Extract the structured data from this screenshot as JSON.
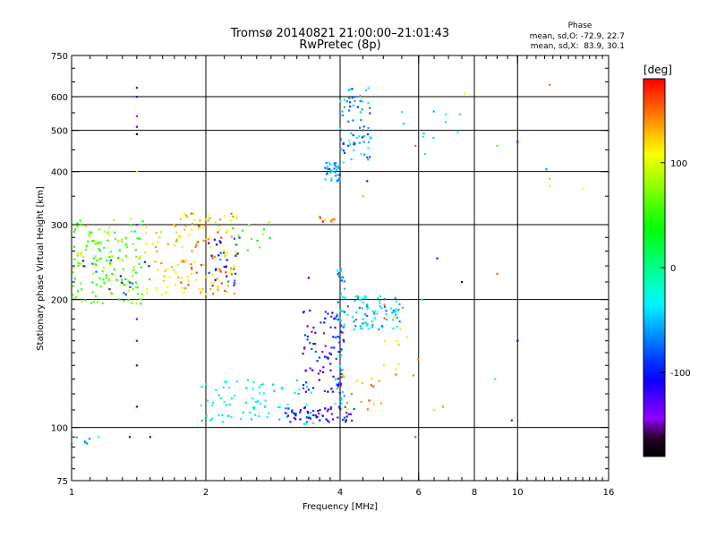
{
  "chart_data": {
    "type": "scatter",
    "title": "Tromsø 20140821 21:00:00–21:01:43",
    "subtitle": "RwPretec (8p)",
    "xlabel": "Frequency [MHz]",
    "ylabel": "Stationary phase Virtual Height [km]",
    "xscale": "log",
    "yscale": "log",
    "xlim": [
      1,
      16
    ],
    "ylim": [
      75,
      750
    ],
    "xticks": [
      1,
      2,
      4,
      6,
      8,
      10,
      16
    ],
    "yticks": [
      75,
      100,
      200,
      300,
      400,
      500,
      600,
      750
    ],
    "x_gridlines": [
      2,
      4,
      6,
      8,
      10
    ],
    "y_gridlines": [
      100,
      200,
      300,
      400,
      500,
      600
    ],
    "grid": true,
    "phase_note": {
      "title": "Phase",
      "line_o": "mean, sd,O: -72.9, 22.7",
      "line_x": "mean, sd,X:  83.9, 30.1"
    },
    "colorbar": {
      "label": "[deg]",
      "range": [
        -180,
        180
      ],
      "ticks": [
        100,
        0,
        -100
      ]
    },
    "clusters": [
      {
        "x_range": [
          1.0,
          1.45
        ],
        "y_range": [
          195,
          310
        ],
        "phase": 60,
        "count": 150
      },
      {
        "x_range": [
          1.45,
          1.75
        ],
        "y_range": [
          200,
          300
        ],
        "phase": 110,
        "count": 40
      },
      {
        "x_range": [
          1.75,
          2.35
        ],
        "y_range": [
          205,
          320
        ],
        "phase": 130,
        "count": 120
      },
      {
        "x_range": [
          2.0,
          2.4
        ],
        "y_range": [
          215,
          280
        ],
        "phase": -90,
        "count": 30
      },
      {
        "x_range": [
          1.0,
          1.5
        ],
        "y_range": [
          205,
          250
        ],
        "phase": -100,
        "count": 15
      },
      {
        "x_range": [
          2.3,
          2.8
        ],
        "y_range": [
          260,
          310
        ],
        "phase": 60,
        "count": 12
      },
      {
        "x_range": [
          1.95,
          3.5
        ],
        "y_range": [
          101,
          130
        ],
        "phase": -20,
        "count": 80
      },
      {
        "x_range": [
          3.0,
          4.3
        ],
        "y_range": [
          103,
          112
        ],
        "phase": -110,
        "count": 60
      },
      {
        "x_range": [
          3.3,
          4.1
        ],
        "y_range": [
          120,
          190
        ],
        "phase": -110,
        "count": 80
      },
      {
        "x_range": [
          3.9,
          4.1
        ],
        "y_range": [
          110,
          240
        ],
        "phase": -60,
        "count": 50
      },
      {
        "x_range": [
          4.0,
          5.5
        ],
        "y_range": [
          170,
          205
        ],
        "phase": -40,
        "count": 80
      },
      {
        "x_range": [
          4.0,
          5.0
        ],
        "y_range": [
          110,
          135
        ],
        "phase": 140,
        "count": 20
      },
      {
        "x_range": [
          5.0,
          6.0
        ],
        "y_range": [
          130,
          200
        ],
        "phase": 120,
        "count": 15
      },
      {
        "x_range": [
          3.7,
          4.0
        ],
        "y_range": [
          378,
          420
        ],
        "phase": -60,
        "count": 35
      },
      {
        "x_range": [
          4.0,
          4.7
        ],
        "y_range": [
          420,
          630
        ],
        "phase": -60,
        "count": 70
      },
      {
        "x_range": [
          3.55,
          3.9
        ],
        "y_range": [
          305,
          315
        ],
        "phase": 150,
        "count": 10
      },
      {
        "x_range": [
          1.0,
          1.1
        ],
        "y_range": [
          91,
          95
        ],
        "phase": -40,
        "count": 6
      },
      {
        "x_range": [
          5.5,
          7.5
        ],
        "y_range": [
          480,
          560
        ],
        "phase": -40,
        "count": 10
      }
    ],
    "points": [
      {
        "x": 1.4,
        "y": 630,
        "phase": -120
      },
      {
        "x": 1.4,
        "y": 600,
        "phase": -110
      },
      {
        "x": 1.4,
        "y": 540,
        "phase": -150
      },
      {
        "x": 1.4,
        "y": 510,
        "phase": -130
      },
      {
        "x": 1.4,
        "y": 490,
        "phase": -160
      },
      {
        "x": 1.4,
        "y": 400,
        "phase": 100
      },
      {
        "x": 1.4,
        "y": 300,
        "phase": -140
      },
      {
        "x": 1.4,
        "y": 180,
        "phase": -140
      },
      {
        "x": 1.4,
        "y": 160,
        "phase": -130
      },
      {
        "x": 1.4,
        "y": 140,
        "phase": -120
      },
      {
        "x": 1.4,
        "y": 112,
        "phase": -120
      },
      {
        "x": 1.35,
        "y": 95,
        "phase": -100
      },
      {
        "x": 1.5,
        "y": 95,
        "phase": -100
      },
      {
        "x": 1.15,
        "y": 95,
        "phase": -30
      },
      {
        "x": 7.6,
        "y": 610,
        "phase": 100
      },
      {
        "x": 11.8,
        "y": 640,
        "phase": 150
      },
      {
        "x": 10.0,
        "y": 470,
        "phase": -120
      },
      {
        "x": 9.0,
        "y": 460,
        "phase": 60
      },
      {
        "x": 11.6,
        "y": 405,
        "phase": -60
      },
      {
        "x": 11.8,
        "y": 385,
        "phase": 130
      },
      {
        "x": 11.8,
        "y": 370,
        "phase": 100
      },
      {
        "x": 14.0,
        "y": 365,
        "phase": 110
      },
      {
        "x": 7.5,
        "y": 220,
        "phase": -160
      },
      {
        "x": 9.0,
        "y": 230,
        "phase": 150
      },
      {
        "x": 10.0,
        "y": 160,
        "phase": -110
      },
      {
        "x": 8.9,
        "y": 130,
        "phase": -20
      },
      {
        "x": 6.5,
        "y": 110,
        "phase": 120
      },
      {
        "x": 6.8,
        "y": 112,
        "phase": 140
      },
      {
        "x": 9.7,
        "y": 104,
        "phase": -130
      },
      {
        "x": 5.9,
        "y": 95,
        "phase": 160
      },
      {
        "x": 6.2,
        "y": 440,
        "phase": -40
      },
      {
        "x": 5.9,
        "y": 460,
        "phase": 150
      },
      {
        "x": 4.5,
        "y": 350,
        "phase": 130
      },
      {
        "x": 4.6,
        "y": 380,
        "phase": -120
      },
      {
        "x": 3.4,
        "y": 225,
        "phase": -110
      },
      {
        "x": 6.6,
        "y": 250,
        "phase": -120
      },
      {
        "x": 6.1,
        "y": 200,
        "phase": -20
      }
    ]
  }
}
